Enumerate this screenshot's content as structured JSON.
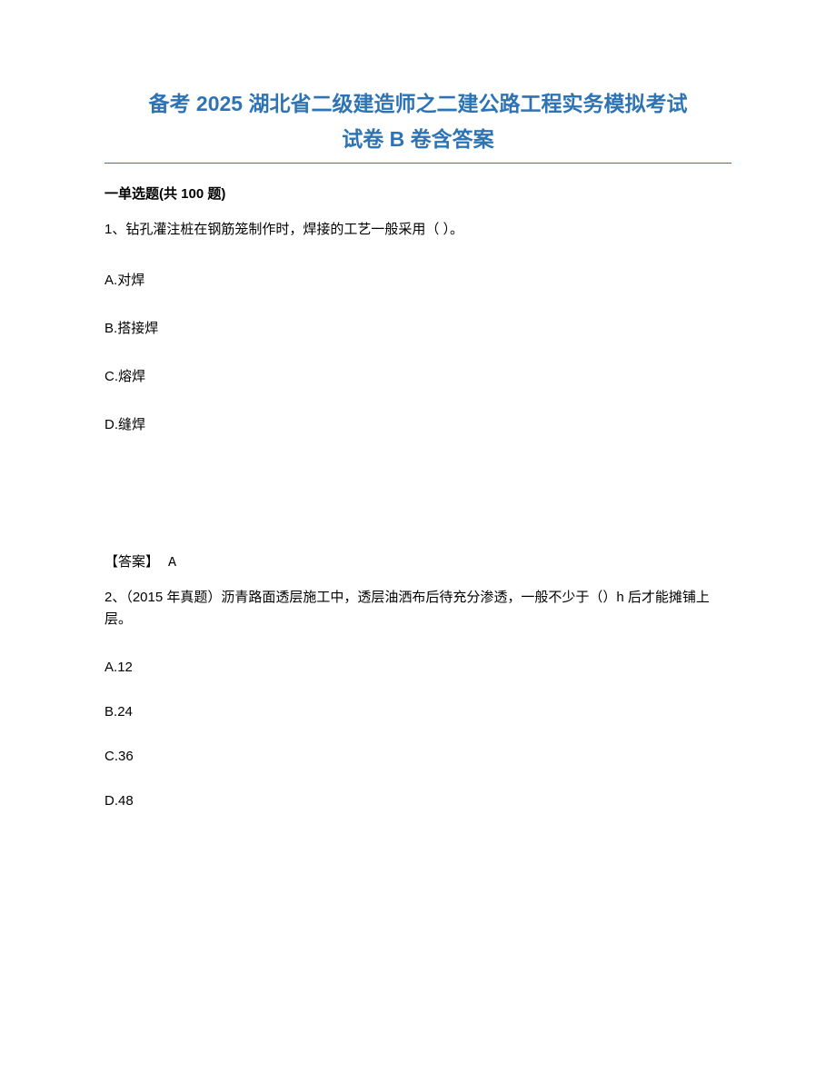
{
  "title": {
    "line1": "备考 2025 湖北省二级建造师之二建公路工程实务模拟考试",
    "line2": "试卷 B 卷含答案",
    "color": "#2e74b5",
    "fontsize": 23
  },
  "section_header": "一单选题(共 100 题)",
  "questions": [
    {
      "number": "1、",
      "text": "钻孔灌注桩在钢筋笼制作时，焊接的工艺一般采用（ ）。",
      "options": [
        {
          "label": "A.",
          "text": "对焊"
        },
        {
          "label": "B.",
          "text": "搭接焊"
        },
        {
          "label": "C.",
          "text": "熔焊"
        },
        {
          "label": "D.",
          "text": "缝焊"
        }
      ],
      "answer_label": "【答案】",
      "answer_value": "A"
    },
    {
      "number": "2、",
      "text": "（2015 年真题）沥青路面透层施工中，透层油洒布后待充分渗透，一般不少于（）h 后才能摊铺上层。",
      "options": [
        {
          "label": "A.",
          "text": "12"
        },
        {
          "label": "B.",
          "text": "24"
        },
        {
          "label": "C.",
          "text": "36"
        },
        {
          "label": "D.",
          "text": "48"
        }
      ]
    }
  ],
  "styling": {
    "body_width": 920,
    "body_height": 1191,
    "background_color": "#ffffff",
    "text_color": "#000000",
    "body_fontsize": 15,
    "option_spacing": 32,
    "answer_top_margin": 130
  }
}
